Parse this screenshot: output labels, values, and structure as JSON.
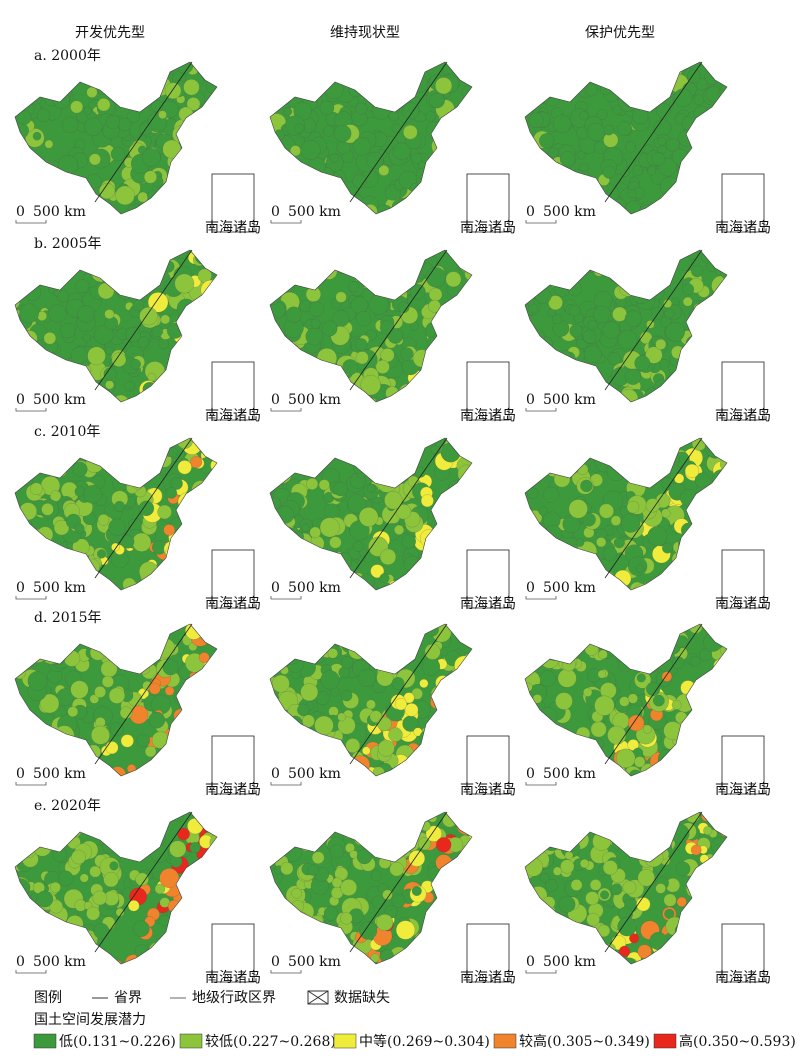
{
  "columns": [
    "开发优先型",
    "维持现状型",
    "保护优先型"
  ],
  "rows": [
    "a. 2000年",
    "b. 2005年",
    "c. 2010年",
    "d. 2015年",
    "e. 2020年"
  ],
  "scale_bar": {
    "zero": "0",
    "label": "500 km"
  },
  "inset_label": "南海诸岛",
  "legend": {
    "title": "图例",
    "province_border": "省界",
    "city_border": "地级行政区界",
    "missing": "数据缺失",
    "subtitle": "国土空间发展潜力",
    "classes": [
      {
        "name": "低(0.131~0.226)",
        "color": "#3c9a3c"
      },
      {
        "name": "较低(0.227~0.268)",
        "color": "#8cc43c"
      },
      {
        "name": "中等(0.269~0.304)",
        "color": "#f0ec3c"
      },
      {
        "name": "较高(0.305~0.349)",
        "color": "#f0842c"
      },
      {
        "name": "高(0.350~0.593)",
        "color": "#e8281c"
      }
    ]
  }
}
